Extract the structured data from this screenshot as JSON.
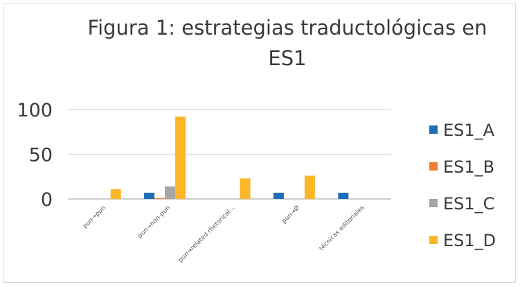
{
  "chart_data": {
    "type": "bar",
    "title": "Figura 1: estrategias traductológicas en ES1",
    "categories": [
      "pun→pun",
      "pun→non-pun",
      "pun→related rhetorical...",
      "pun→Ø",
      "técnicas editoriales"
    ],
    "series": [
      {
        "name": "ES1_A",
        "color": "#1f6cb7",
        "values": [
          0,
          7,
          0,
          7,
          7
        ]
      },
      {
        "name": "ES1_B",
        "color": "#ef7d31",
        "values": [
          0,
          1,
          0,
          0,
          0
        ]
      },
      {
        "name": "ES1_C",
        "color": "#a5a5a5",
        "values": [
          0,
          14,
          0,
          0,
          0
        ]
      },
      {
        "name": "ES1_D",
        "color": "#fbb629",
        "values": [
          11,
          92,
          23,
          26,
          0
        ]
      }
    ],
    "yticks": [
      0,
      50,
      100
    ],
    "ylim": [
      0,
      100
    ],
    "grid": true,
    "legend": "right"
  }
}
